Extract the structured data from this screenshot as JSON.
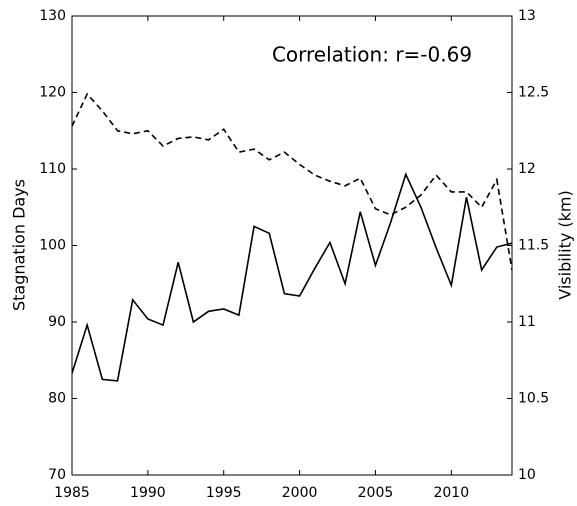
{
  "chart_data": {
    "type": "line",
    "annotation": "Correlation: r=-0.69",
    "ylabel": "Stagnation Days",
    "y2label": "Visibility (km)",
    "x": [
      1985,
      1986,
      1987,
      1988,
      1989,
      1990,
      1991,
      1992,
      1993,
      1994,
      1995,
      1996,
      1997,
      1998,
      1999,
      2000,
      2001,
      2002,
      2003,
      2004,
      2005,
      2006,
      2007,
      2008,
      2009,
      2010,
      2011,
      2012,
      2013,
      2014
    ],
    "series": [
      {
        "color": "#000000",
        "style": "solid",
        "values": [
          83.3,
          89.6,
          82.5,
          82.3,
          92.9,
          90.4,
          89.6,
          97.8,
          90.0,
          91.4,
          91.7,
          90.9,
          102.5,
          101.6,
          93.7,
          93.4,
          97.0,
          100.4,
          95.0,
          104.4,
          97.4,
          103.0,
          109.3,
          105.0,
          99.7,
          94.8,
          106.3,
          96.8,
          99.8,
          100.3
        ]
      },
      {
        "color": "#000000",
        "style": "dashed",
        "axis": "y2",
        "values": [
          12.28,
          12.49,
          12.38,
          12.25,
          12.23,
          12.25,
          12.15,
          12.2,
          12.21,
          12.19,
          12.26,
          12.11,
          12.13,
          12.06,
          12.11,
          12.03,
          11.96,
          11.92,
          11.89,
          11.94,
          11.74,
          11.7,
          11.75,
          11.83,
          11.96,
          11.85,
          11.85,
          11.75,
          11.93,
          11.34
        ]
      }
    ],
    "xlim": [
      1985,
      2014
    ],
    "xticks": [
      1985,
      1990,
      1995,
      2000,
      2005,
      2010
    ],
    "ylim": [
      70,
      130
    ],
    "yticks": [
      70,
      80,
      90,
      100,
      110,
      120,
      130
    ],
    "y2lim": [
      10,
      13
    ],
    "y2ticks": [
      10,
      10.5,
      11,
      11.5,
      12,
      12.5,
      13
    ]
  }
}
